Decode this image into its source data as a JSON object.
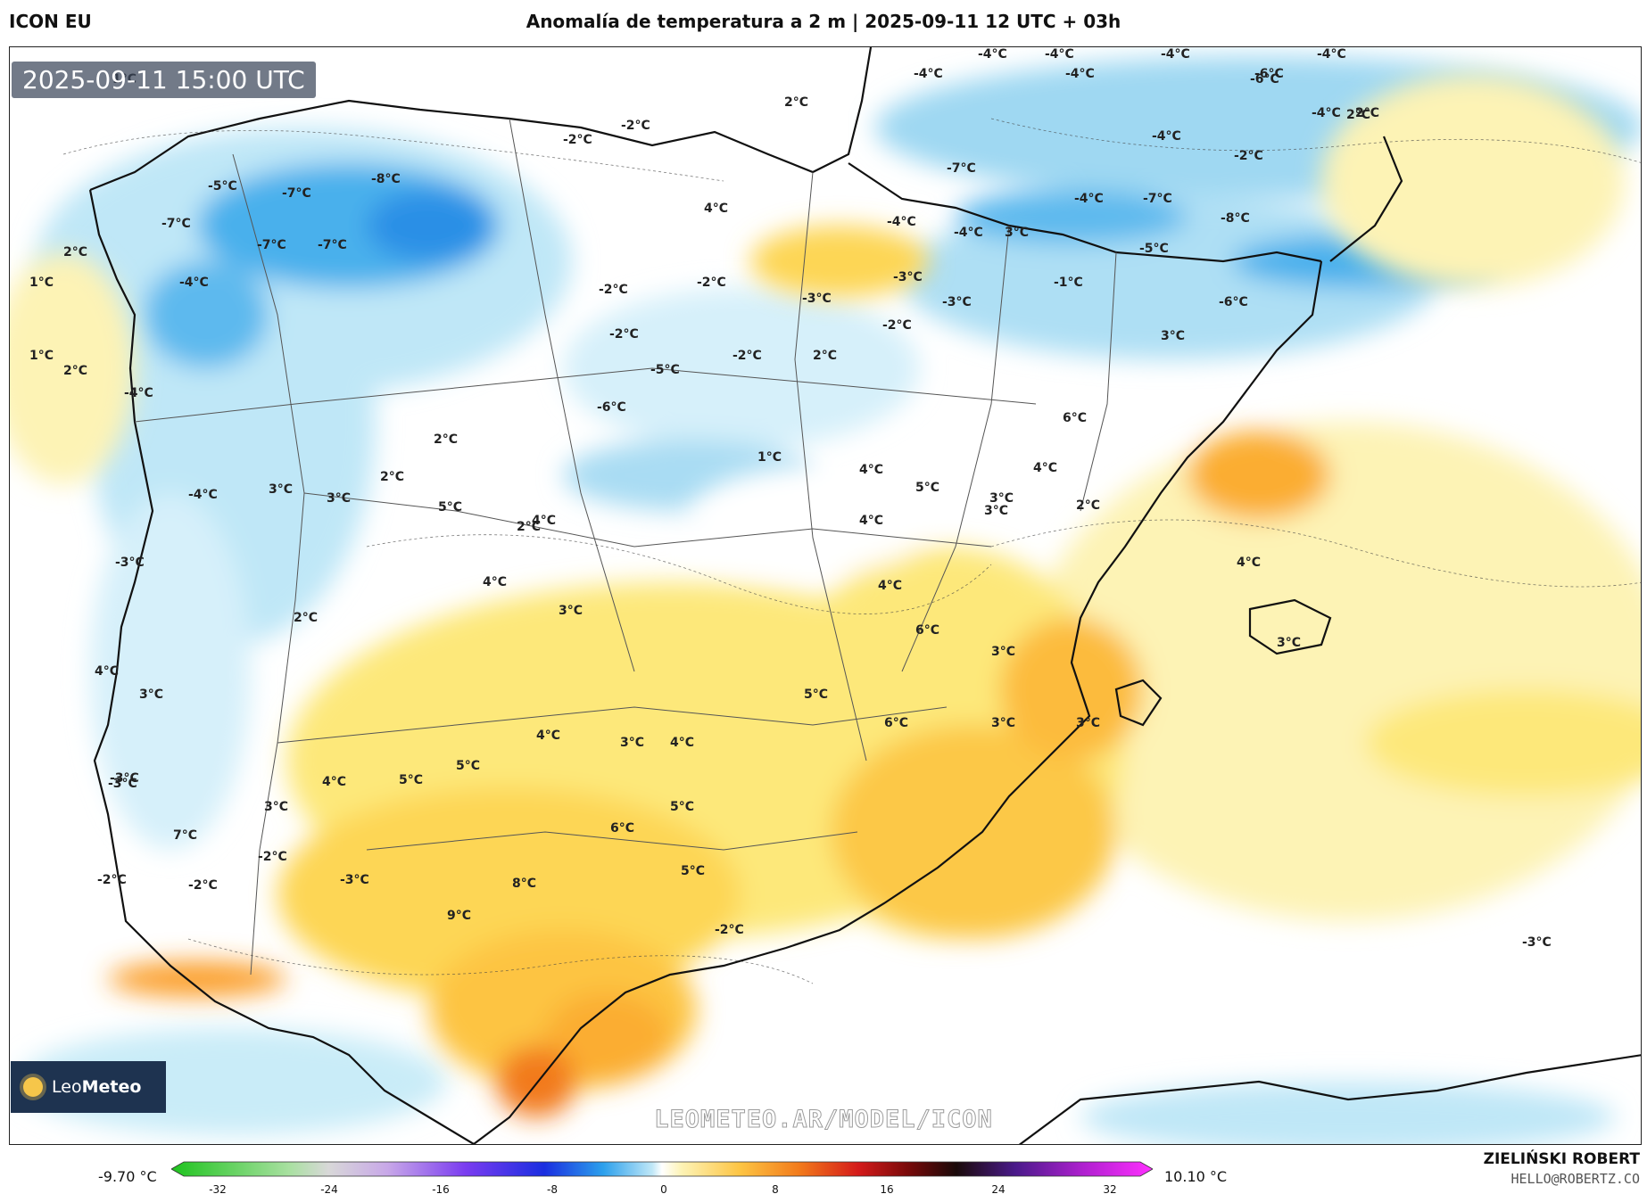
{
  "header": {
    "model": "ICON EU",
    "title": "Anomalía de temperatura a 2 m | 2025-09-11 12 UTC + 03h"
  },
  "valid_time": "2025-09-11 15:00 UTC",
  "logo_text_a": "Leo",
  "logo_text_b": "Meteo",
  "watermark": "LEOMETEO.AR/MODEL/ICON",
  "colorbar": {
    "min_label": "-9.70 °C",
    "max_label": "10.10 °C",
    "ticks": [
      "-32",
      "-24",
      "-16",
      "-8",
      "0",
      "8",
      "16",
      "24",
      "32"
    ]
  },
  "footer": {
    "author": "ZIELIŃSKI ROBERT",
    "email": "HELLO@ROBERTZ.CO"
  },
  "labels": [
    {
      "t": "1°C"
    },
    {
      "t": "2°C"
    },
    {
      "t": "1°C"
    },
    {
      "t": "1°C"
    },
    {
      "t": "2°C"
    },
    {
      "t": "-5°C"
    },
    {
      "t": "-7°C"
    },
    {
      "t": "-8°C"
    },
    {
      "t": "-7°C"
    },
    {
      "t": "-7°C"
    },
    {
      "t": "-7°C"
    },
    {
      "t": "-4°C"
    },
    {
      "t": "-4°C"
    },
    {
      "t": "-4°C"
    },
    {
      "t": "-3°C"
    },
    {
      "t": "-3°C"
    },
    {
      "t": "-2°C"
    },
    {
      "t": "-2°C"
    },
    {
      "t": "2°C"
    },
    {
      "t": "4°C"
    },
    {
      "t": "-2°C"
    },
    {
      "t": "-2°C"
    },
    {
      "t": "-3°C"
    },
    {
      "t": "-2°C"
    },
    {
      "t": "-5°C"
    },
    {
      "t": "-6°C"
    },
    {
      "t": "-2°C"
    },
    {
      "t": "2°C"
    },
    {
      "t": "-2°C"
    },
    {
      "t": "-4°C"
    },
    {
      "t": "-4°C"
    },
    {
      "t": "-4°C"
    },
    {
      "t": "-4°C"
    },
    {
      "t": "-6°C"
    },
    {
      "t": "-7°C"
    },
    {
      "t": "-4°C"
    },
    {
      "t": "-4°C"
    },
    {
      "t": "3°C"
    },
    {
      "t": "-7°C"
    },
    {
      "t": "-8°C"
    },
    {
      "t": "-5°C"
    },
    {
      "t": "-2°C"
    },
    {
      "t": "2°C"
    },
    {
      "t": "-3°C"
    },
    {
      "t": "-3°C"
    },
    {
      "t": "-1°C"
    },
    {
      "t": "-6°C"
    },
    {
      "t": "3°C"
    },
    {
      "t": "6°C"
    },
    {
      "t": "2°C"
    },
    {
      "t": "3°C"
    },
    {
      "t": "2°C"
    },
    {
      "t": "3°C"
    },
    {
      "t": "3°C"
    },
    {
      "t": "2°C"
    },
    {
      "t": "5°C"
    },
    {
      "t": "4°C"
    },
    {
      "t": "4°C"
    },
    {
      "t": "1°C"
    },
    {
      "t": "4°C"
    },
    {
      "t": "4°C"
    },
    {
      "t": "5°C"
    },
    {
      "t": "3°C"
    },
    {
      "t": "2°C"
    },
    {
      "t": "4°C"
    },
    {
      "t": "3°C"
    },
    {
      "t": "2°C"
    },
    {
      "t": "4°C"
    },
    {
      "t": "6°C"
    },
    {
      "t": "3°C"
    },
    {
      "t": "4°C"
    },
    {
      "t": "3°C"
    },
    {
      "t": "5°C"
    },
    {
      "t": "6°C"
    },
    {
      "t": "3°C"
    },
    {
      "t": "3°C"
    },
    {
      "t": "3°C"
    },
    {
      "t": "4°C"
    },
    {
      "t": "3°C"
    },
    {
      "t": "4°C"
    },
    {
      "t": "4°C"
    },
    {
      "t": "5°C"
    },
    {
      "t": "5°C"
    },
    {
      "t": "-3°C"
    },
    {
      "t": "4°C"
    },
    {
      "t": "3°C"
    },
    {
      "t": "7°C"
    },
    {
      "t": "6°C"
    },
    {
      "t": "5°C"
    },
    {
      "t": "-2°C"
    },
    {
      "t": "-2°C"
    },
    {
      "t": "-2°C"
    },
    {
      "t": "-3°C"
    },
    {
      "t": "8°C"
    },
    {
      "t": "5°C"
    },
    {
      "t": "9°C"
    },
    {
      "t": "-2°C"
    },
    {
      "t": "-3°C"
    },
    {
      "t": "-6°C"
    },
    {
      "t": "-4°C"
    },
    {
      "t": "-4°C"
    },
    {
      "t": "-4°C"
    },
    {
      "t": "-4°C"
    },
    {
      "t": "-4°C"
    },
    {
      "t": "2°C"
    }
  ]
}
